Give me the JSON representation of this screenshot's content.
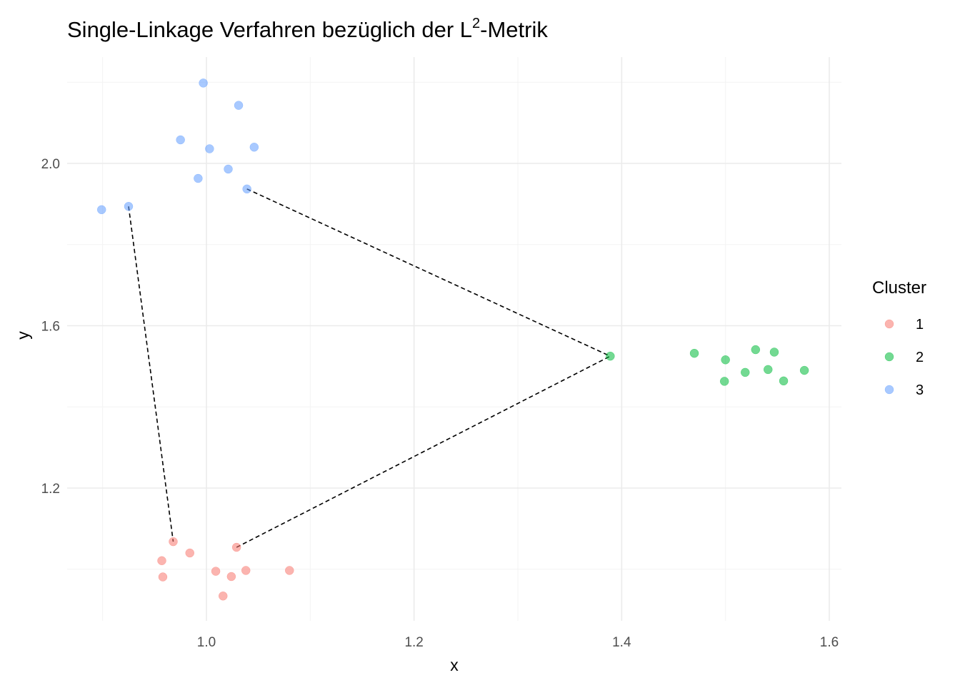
{
  "chart_data": {
    "type": "scatter",
    "title_main": "Single-Linkage Verfahren bezüglich der L",
    "title_sup": "2",
    "title_tail": "-Metrik",
    "xlabel": "x",
    "ylabel": "y",
    "xlim": [
      0.865,
      1.61
    ],
    "ylim": [
      0.9,
      2.2
    ],
    "x_ticks": [
      1.0,
      1.2,
      1.4,
      1.6
    ],
    "x_tick_labels": [
      "1.0",
      "1.2",
      "1.4",
      "1.6"
    ],
    "y_ticks": [
      1.2,
      1.6,
      2.0
    ],
    "y_tick_labels": [
      "1.2",
      "1.6",
      "2.0"
    ],
    "x_minor": [
      0.9,
      1.1,
      1.3,
      1.5
    ],
    "y_minor": [
      1.0,
      1.4,
      1.8,
      2.2
    ],
    "grid": true,
    "legend_title": "Cluster",
    "legend_position": "right",
    "series": [
      {
        "name": "1",
        "color": "#F8766D",
        "points": [
          [
            0.968,
            1.068
          ],
          [
            0.957,
            1.021
          ],
          [
            0.984,
            1.04
          ],
          [
            1.029,
            1.054
          ],
          [
            0.958,
            0.981
          ],
          [
            1.009,
            0.995
          ],
          [
            1.024,
            0.982
          ],
          [
            1.038,
            0.997
          ],
          [
            1.08,
            0.997
          ],
          [
            1.016,
            0.934
          ]
        ]
      },
      {
        "name": "2",
        "color": "#00BA38",
        "points": [
          [
            1.389,
            1.525
          ],
          [
            1.47,
            1.532
          ],
          [
            1.5,
            1.516
          ],
          [
            1.529,
            1.541
          ],
          [
            1.547,
            1.535
          ],
          [
            1.519,
            1.485
          ],
          [
            1.541,
            1.492
          ],
          [
            1.576,
            1.49
          ],
          [
            1.499,
            1.463
          ],
          [
            1.556,
            1.464
          ]
        ]
      },
      {
        "name": "3",
        "color": "#619CFF",
        "points": [
          [
            0.997,
            2.198
          ],
          [
            1.031,
            2.143
          ],
          [
            0.975,
            2.058
          ],
          [
            1.003,
            2.036
          ],
          [
            1.046,
            2.04
          ],
          [
            1.021,
            1.986
          ],
          [
            0.992,
            1.963
          ],
          [
            1.039,
            1.937
          ],
          [
            0.899,
            1.886
          ],
          [
            0.925,
            1.894
          ]
        ]
      }
    ],
    "links": [
      [
        [
          0.925,
          1.894
        ],
        [
          0.968,
          1.068
        ]
      ],
      [
        [
          1.039,
          1.937
        ],
        [
          1.389,
          1.525
        ]
      ],
      [
        [
          1.029,
          1.054
        ],
        [
          1.389,
          1.525
        ]
      ]
    ]
  }
}
